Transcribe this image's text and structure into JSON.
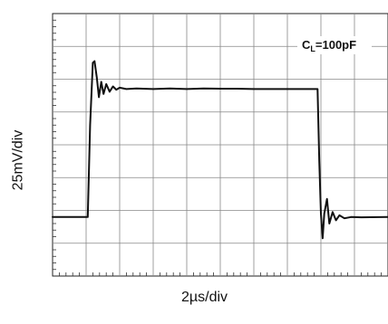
{
  "chart_data": {
    "type": "line",
    "xlabel": "2µs/div",
    "ylabel": "25mV/div",
    "annotation": {
      "base": "C",
      "sub": "L",
      "rest": "=100pF"
    },
    "grid": true,
    "divisions": {
      "x": 10,
      "y": 8
    },
    "x_unit_per_div": "2µs",
    "y_unit_per_div": "25mV",
    "xlim": [
      0,
      10
    ],
    "ylim": [
      0,
      8
    ],
    "series": [
      {
        "x": [
          0,
          1.05,
          1.12,
          1.2,
          1.25,
          1.32,
          1.38,
          1.45,
          1.52,
          1.6,
          1.7,
          1.8,
          1.9,
          2.0,
          2.2,
          2.5,
          3.0,
          3.5,
          4.0,
          4.5,
          5.0,
          5.5,
          6.0,
          6.5,
          7.0,
          7.5,
          7.9,
          7.95,
          8.0,
          8.05,
          8.1,
          8.18,
          8.25,
          8.35,
          8.45,
          8.55,
          8.7,
          8.9,
          9.2,
          10.0
        ],
        "y": [
          1.8,
          1.8,
          4.6,
          6.5,
          6.55,
          6.05,
          5.45,
          5.92,
          5.55,
          5.85,
          5.62,
          5.78,
          5.68,
          5.74,
          5.7,
          5.72,
          5.7,
          5.72,
          5.7,
          5.72,
          5.71,
          5.71,
          5.7,
          5.7,
          5.7,
          5.7,
          5.7,
          3.5,
          1.9,
          1.15,
          1.9,
          2.35,
          1.6,
          1.95,
          1.7,
          1.85,
          1.76,
          1.8,
          1.79,
          1.8
        ]
      }
    ]
  }
}
